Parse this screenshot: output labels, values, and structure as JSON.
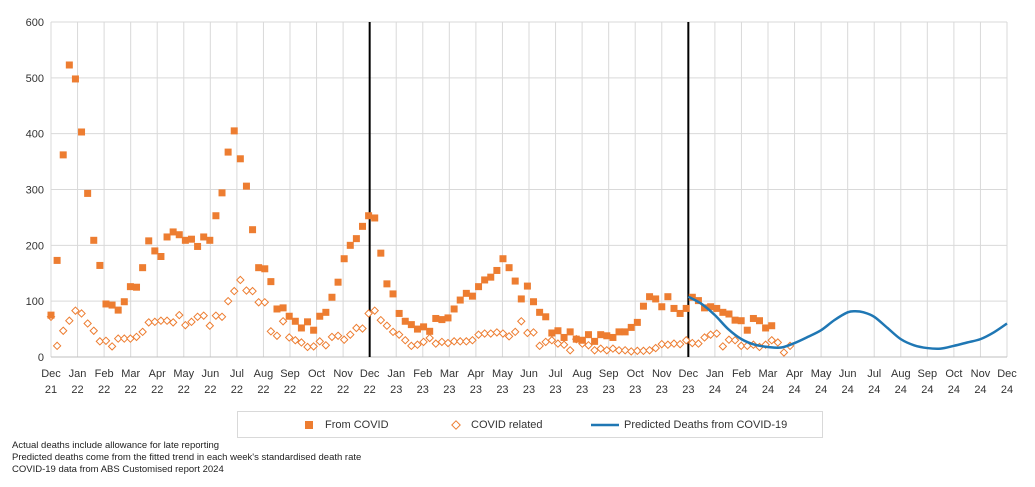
{
  "chart_data": {
    "type": "scatter",
    "title": "",
    "xlabel": "",
    "ylabel": "",
    "ylim": [
      0,
      600
    ],
    "yticks": [
      0,
      100,
      200,
      300,
      400,
      500,
      600
    ],
    "grid": true,
    "x_unit": "months since Dec 2021",
    "xlim": [
      0,
      36
    ],
    "x_ticks": [
      {
        "month": "Dec",
        "year": "21"
      },
      {
        "month": "Jan",
        "year": "22"
      },
      {
        "month": "Feb",
        "year": "22"
      },
      {
        "month": "Mar",
        "year": "22"
      },
      {
        "month": "Apr",
        "year": "22"
      },
      {
        "month": "May",
        "year": "22"
      },
      {
        "month": "Jun",
        "year": "22"
      },
      {
        "month": "Jul",
        "year": "22"
      },
      {
        "month": "Aug",
        "year": "22"
      },
      {
        "month": "Sep",
        "year": "22"
      },
      {
        "month": "Oct",
        "year": "22"
      },
      {
        "month": "Nov",
        "year": "22"
      },
      {
        "month": "Dec",
        "year": "22"
      },
      {
        "month": "Jan",
        "year": "23"
      },
      {
        "month": "Feb",
        "year": "23"
      },
      {
        "month": "Mar",
        "year": "23"
      },
      {
        "month": "Apr",
        "year": "23"
      },
      {
        "month": "May",
        "year": "23"
      },
      {
        "month": "Jun",
        "year": "23"
      },
      {
        "month": "Jul",
        "year": "23"
      },
      {
        "month": "Aug",
        "year": "23"
      },
      {
        "month": "Sep",
        "year": "23"
      },
      {
        "month": "Oct",
        "year": "23"
      },
      {
        "month": "Nov",
        "year": "23"
      },
      {
        "month": "Dec",
        "year": "23"
      },
      {
        "month": "Jan",
        "year": "24"
      },
      {
        "month": "Feb",
        "year": "24"
      },
      {
        "month": "Mar",
        "year": "24"
      },
      {
        "month": "Apr",
        "year": "24"
      },
      {
        "month": "May",
        "year": "24"
      },
      {
        "month": "Jun",
        "year": "24"
      },
      {
        "month": "Jul",
        "year": "24"
      },
      {
        "month": "Aug",
        "year": "24"
      },
      {
        "month": "Sep",
        "year": "24"
      },
      {
        "month": "Oct",
        "year": "24"
      },
      {
        "month": "Nov",
        "year": "24"
      },
      {
        "month": "Dec",
        "year": "24"
      }
    ],
    "divider_lines_at_month": [
      12,
      24
    ],
    "series": [
      {
        "name": "From COVID",
        "marker": "square",
        "color": "#ED7D31",
        "x_start": 0.0,
        "x_step": 0.23,
        "values": [
          75,
          173,
          362,
          523,
          498,
          403,
          293,
          209,
          164,
          95,
          93,
          84,
          99,
          126,
          125,
          160,
          208,
          190,
          180,
          215,
          224,
          219,
          209,
          211,
          198,
          215,
          209,
          253,
          294,
          367,
          405,
          355,
          306,
          228,
          160,
          158,
          135,
          86,
          88,
          73,
          64,
          52,
          63,
          48,
          73,
          80,
          107,
          134,
          176,
          200,
          212,
          234,
          253,
          249,
          186,
          131,
          113,
          78,
          64,
          58,
          50,
          54,
          46,
          69,
          67,
          70,
          86,
          102,
          114,
          109,
          126,
          138,
          143,
          155,
          176,
          160,
          136,
          104,
          127,
          99,
          80,
          72,
          43,
          47,
          35,
          45,
          32,
          30,
          40,
          28,
          40,
          38,
          35,
          45,
          45,
          53,
          62,
          91,
          108,
          104,
          90,
          108,
          87,
          78,
          87,
          107,
          101,
          88,
          90,
          87,
          80,
          77,
          66,
          65,
          48,
          69,
          65,
          52,
          56
        ]
      },
      {
        "name": "COVID related",
        "marker": "diamond",
        "color": "#ED7D31",
        "x_start": 0.0,
        "x_step": 0.23,
        "values": [
          72,
          20,
          47,
          65,
          83,
          78,
          60,
          47,
          28,
          29,
          19,
          33,
          33,
          33,
          36,
          45,
          62,
          63,
          65,
          65,
          62,
          75,
          57,
          63,
          72,
          74,
          56,
          74,
          72,
          100,
          118,
          138,
          119,
          118,
          98,
          98,
          46,
          38,
          64,
          35,
          30,
          26,
          18,
          19,
          28,
          21,
          36,
          38,
          31,
          40,
          52,
          51,
          78,
          83,
          66,
          56,
          45,
          40,
          30,
          20,
          22,
          27,
          34,
          24,
          27,
          25,
          28,
          28,
          28,
          30,
          40,
          42,
          42,
          44,
          42,
          37,
          45,
          64,
          43,
          44,
          20,
          27,
          30,
          24,
          22,
          12,
          32,
          24,
          21,
          12,
          15,
          12,
          15,
          12,
          12,
          10,
          11,
          11,
          12,
          16,
          23,
          22,
          24,
          23,
          30,
          25,
          24,
          35,
          40,
          42,
          19,
          31,
          30,
          20,
          20,
          22,
          18,
          22,
          30,
          26,
          8,
          20
        ]
      },
      {
        "name": "Predicted Deaths from COVID-19",
        "marker": "line",
        "color": "#1F77B4",
        "x": [
          24.0,
          24.5,
          25.0,
          25.5,
          26.0,
          26.5,
          27.0,
          27.5,
          28.0,
          28.5,
          29.0,
          29.5,
          30.0,
          30.3,
          30.6,
          31.0,
          31.5,
          32.0,
          32.5,
          33.0,
          33.5,
          34.0,
          34.5,
          35.0,
          35.5,
          36.0
        ],
        "values": [
          108,
          95,
          75,
          50,
          32,
          22,
          18,
          17,
          25,
          36,
          48,
          66,
          80,
          82,
          80,
          72,
          52,
          32,
          21,
          16,
          15,
          20,
          26,
          32,
          44,
          60
        ]
      }
    ]
  },
  "legend": {
    "items": [
      {
        "label": "From COVID",
        "symbol": "square"
      },
      {
        "label": "COVID related",
        "symbol": "diamond"
      },
      {
        "label": "Predicted Deaths from COVID-19",
        "symbol": "line"
      }
    ]
  },
  "notes": [
    "Actual deaths include allowance for late reporting",
    "Predicted deaths  come from the fitted trend in each week's standardised death rate",
    "COVID-19 data from ABS Customised report 2024"
  ]
}
